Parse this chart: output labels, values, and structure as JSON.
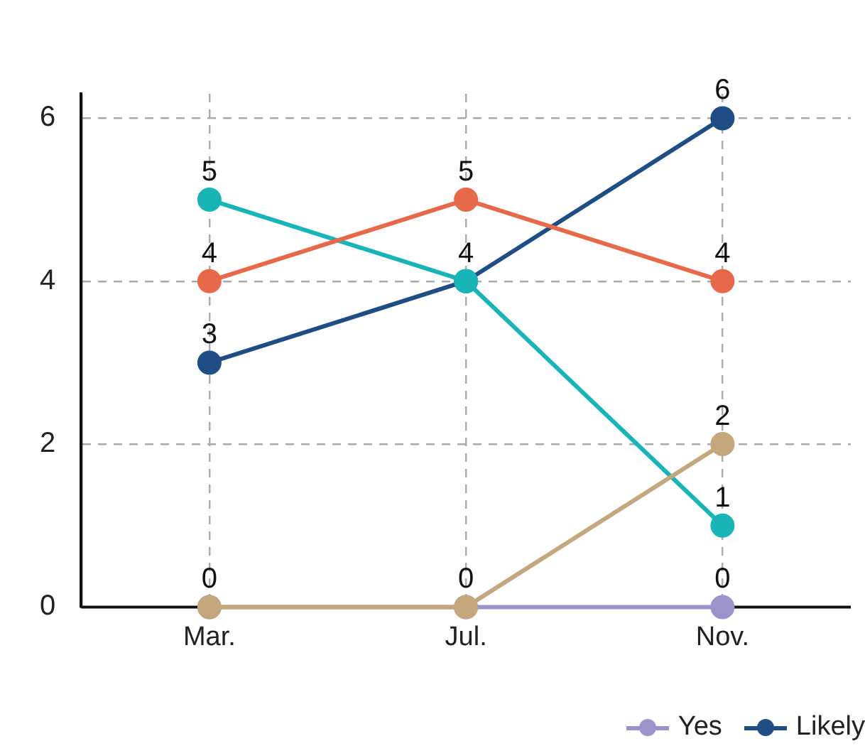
{
  "chart_data": {
    "type": "line",
    "categories": [
      "Mar.",
      "Jul.",
      "Nov."
    ],
    "series": [
      {
        "name": "Yes",
        "color": "#9b93c9",
        "values": [
          0,
          0,
          0
        ],
        "value_labels": [
          "0",
          "0",
          "0"
        ]
      },
      {
        "name": "Likely",
        "color": "#1f4e85",
        "values": [
          3,
          4,
          6
        ],
        "value_labels": [
          "3",
          "4",
          "6"
        ]
      },
      {
        "color": "#17b5b8",
        "values": [
          5,
          4,
          1
        ],
        "value_labels": [
          "5",
          null,
          "1"
        ]
      },
      {
        "color": "#e8694a",
        "values": [
          4,
          5,
          4
        ],
        "value_labels": [
          "4",
          "5",
          "4"
        ]
      },
      {
        "color": "#c4a77d",
        "values": [
          0,
          0,
          2
        ],
        "value_labels": [
          null,
          null,
          "2"
        ]
      }
    ],
    "ylim": [
      0,
      6.3
    ],
    "yticks": [
      0,
      2,
      4,
      6
    ],
    "grid": true,
    "legend": "bottom right",
    "marker": "circle",
    "line_style": "solid"
  }
}
